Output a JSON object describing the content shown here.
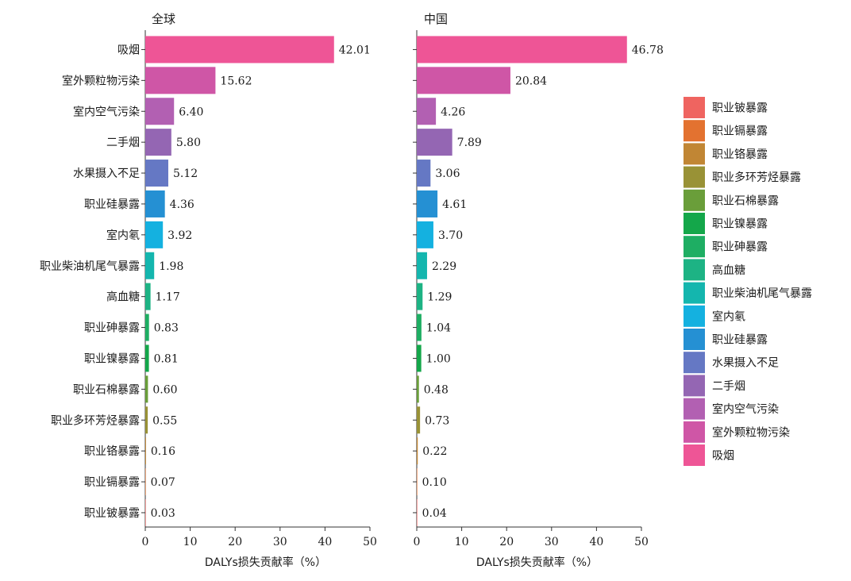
{
  "chart_data": {
    "type": "bar",
    "orientation": "horizontal",
    "categories": [
      "吸烟",
      "室外颗粒物污染",
      "室内空气污染",
      "二手烟",
      "水果摄入不足",
      "职业硅暴露",
      "室内氡",
      "职业柴油机尾气暴露",
      "高血糖",
      "职业砷暴露",
      "职业镍暴露",
      "职业石棉暴露",
      "职业多环芳烃暴露",
      "职业铬暴露",
      "职业镉暴露",
      "职业铍暴露"
    ],
    "colors": {
      "吸烟": "#EE5596",
      "室外颗粒物污染": "#CF56A6",
      "室内空气污染": "#B260B2",
      "二手烟": "#9466B3",
      "水果摄入不足": "#6578C4",
      "职业硅暴露": "#2590D3",
      "室内氡": "#14B1E0",
      "职业柴油机尾气暴露": "#14B6AE",
      "高血糖": "#1DB384",
      "职业砷暴露": "#1EAE63",
      "职业镍暴露": "#14A74A",
      "职业石棉暴露": "#6A9E3A",
      "职业多环芳烃暴露": "#999236",
      "职业铬暴露": "#C18634",
      "职业镉暴露": "#E37230",
      "职业铍暴露": "#EF6460"
    },
    "panels": [
      {
        "title": "全球",
        "values": [
          42.01,
          15.62,
          6.4,
          5.8,
          5.12,
          4.36,
          3.92,
          1.98,
          1.17,
          0.83,
          0.81,
          0.6,
          0.55,
          0.16,
          0.07,
          0.03
        ],
        "value_labels": [
          "42.01",
          "15.62",
          "6.40",
          "5.80",
          "5.12",
          "4.36",
          "3.92",
          "1.98",
          "1.17",
          "0.83",
          "0.81",
          "0.60",
          "0.55",
          "0.16",
          "0.07",
          "0.03"
        ]
      },
      {
        "title": "中国",
        "values": [
          46.78,
          20.84,
          4.26,
          7.89,
          3.06,
          4.61,
          3.7,
          2.29,
          1.29,
          1.04,
          1.0,
          0.48,
          0.73,
          0.22,
          0.1,
          0.04
        ],
        "value_labels": [
          "46.78",
          "20.84",
          "4.26",
          "7.89",
          "3.06",
          "4.61",
          "3.70",
          "2.29",
          "1.29",
          "1.04",
          "1.00",
          "0.48",
          "0.73",
          "0.22",
          "0.10",
          "0.04"
        ]
      }
    ],
    "xlim": [
      0,
      50
    ],
    "xticks": [
      "0",
      "10",
      "20",
      "30",
      "40",
      "50"
    ],
    "xlabel": "DALYs损失贡献率（%）",
    "legend": {
      "position": "right",
      "entries": [
        "职业铍暴露",
        "职业镉暴露",
        "职业铬暴露",
        "职业多环芳烃暴露",
        "职业石棉暴露",
        "职业镍暴露",
        "职业砷暴露",
        "高血糖",
        "职业柴油机尾气暴露",
        "室内氡",
        "职业硅暴露",
        "水果摄入不足",
        "二手烟",
        "室内空气污染",
        "室外颗粒物污染",
        "吸烟"
      ]
    }
  }
}
